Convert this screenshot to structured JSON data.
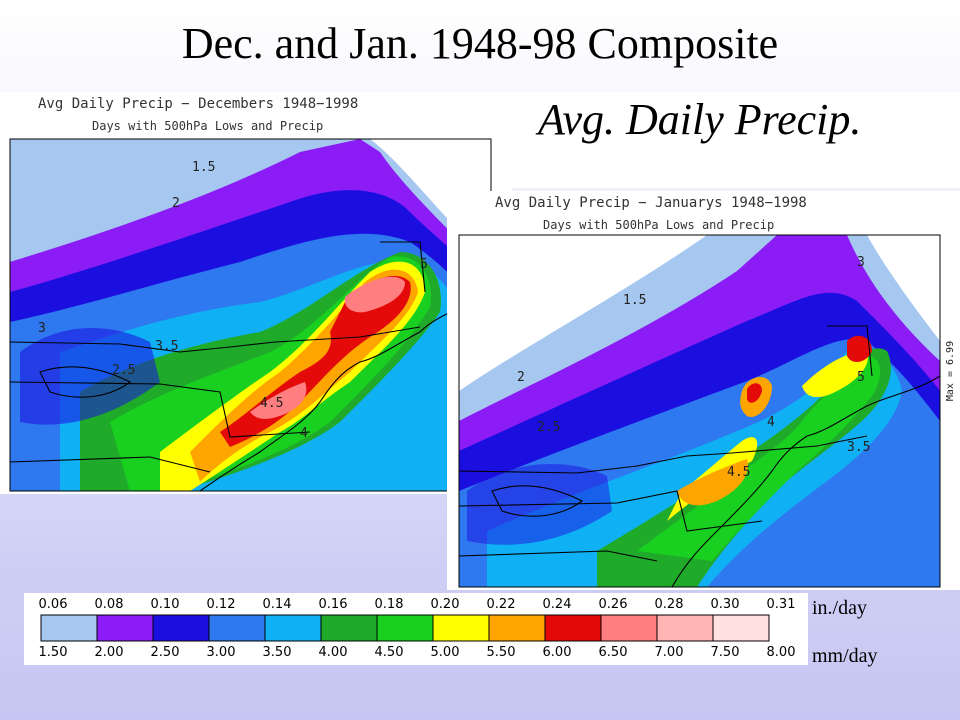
{
  "slide": {
    "title": "Dec. and Jan. 1948-98 Composite",
    "subtitle": "Avg. Daily Precip."
  },
  "panels": {
    "december": {
      "title": "Avg Daily Precip − Decembers 1948−1998",
      "subtitle": "Days with 500hPa Lows and Precip",
      "contour_labels": [
        "1.5",
        "2",
        "2.5",
        "3",
        "3.5",
        "4",
        "4.5",
        "5"
      ]
    },
    "january": {
      "title": "Avg Daily Precip − Januarys 1948−1998",
      "subtitle": "Days with 500hPa Lows and Precip",
      "max_label": "Max = 6.99",
      "contour_labels": [
        "1.5",
        "2",
        "2.5",
        "3",
        "3.5",
        "4",
        "4.5",
        "5"
      ]
    }
  },
  "legend": {
    "inches": [
      "0.06",
      "0.08",
      "0.10",
      "0.12",
      "0.14",
      "0.16",
      "0.18",
      "0.20",
      "0.22",
      "0.24",
      "0.26",
      "0.28",
      "0.30",
      "0.31"
    ],
    "mm": [
      "1.50",
      "2.00",
      "2.50",
      "3.00",
      "3.50",
      "4.00",
      "4.50",
      "5.00",
      "5.50",
      "6.00",
      "6.50",
      "7.00",
      "7.50",
      "8.00"
    ],
    "colors": [
      "#a6c8f0",
      "#8c1cf5",
      "#1b0fe0",
      "#2e78f0",
      "#10b0f5",
      "#1faa2a",
      "#19d020",
      "#ffff00",
      "#ffa500",
      "#e40a0a",
      "#ff7f80",
      "#ffb4b4",
      "#ffe0e0"
    ],
    "unit_in": "in./day",
    "unit_mm": "mm/day"
  }
}
